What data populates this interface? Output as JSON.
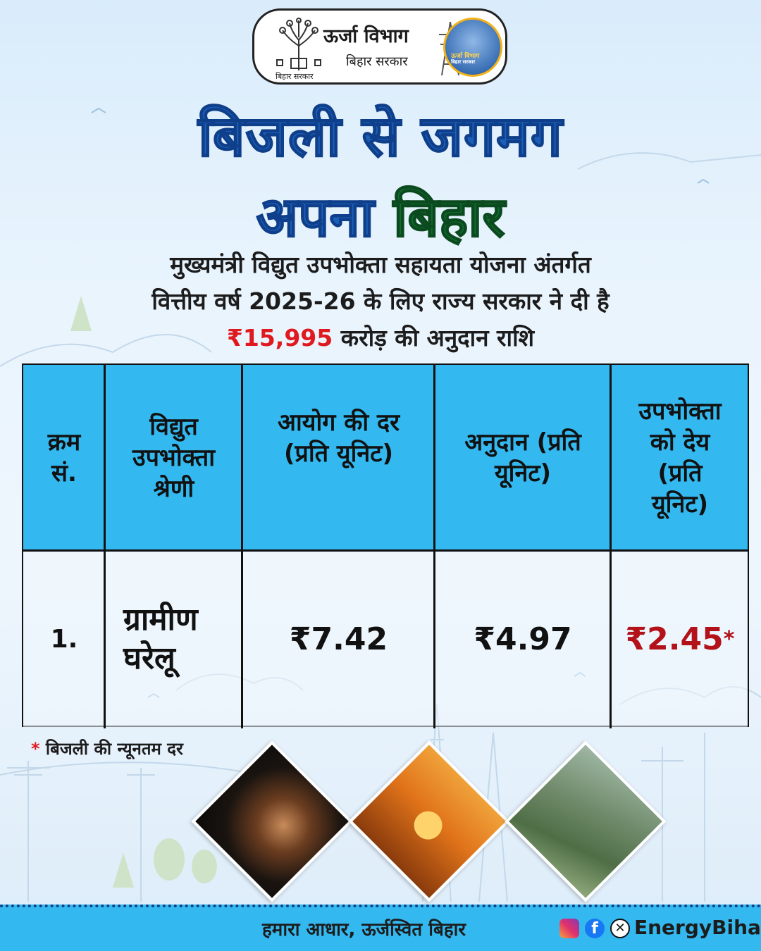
{
  "header": {
    "department": "ऊर्जा विभाग",
    "government": "बिहार सरकार",
    "emblem_caption": "बिहार सरकार",
    "logo_text": "ऊर्जा विभाग",
    "logo_subtext": "बिहार सरकार"
  },
  "headline": {
    "line1": "बिजली से जगमग",
    "line2_part1": "अपना",
    "line2_part2": "बिहार"
  },
  "subtext": {
    "line1": "मुख्यमंत्री विद्युत उपभोक्ता सहायता योजना अंतर्गत",
    "line2": "वित्तीय वर्ष 2025-26 के लिए राज्य सरकार ने दी है",
    "amount": "₹15,995",
    "line3_rest": " करोड़ की अनुदान राशि"
  },
  "table": {
    "headers": [
      "क्रम सं.",
      "विद्युत उपभोक्ता श्रेणी",
      "आयोग की दर (प्रति यूनिट)",
      "अनुदान (प्रति यूनिट)",
      "उपभोक्ता को देय (प्रति यूनिट)"
    ],
    "rows": [
      {
        "sno": "1.",
        "category": "ग्रामीण घरेलू",
        "commission_rate": "₹7.42",
        "subsidy": "₹4.97",
        "payable": "₹2.45",
        "payable_mark": "*"
      }
    ]
  },
  "footnote": {
    "star": "*",
    "text": " बिजली की  न्यूनतम दर"
  },
  "footer": {
    "tagline": "हमारा आधार, ऊर्जस्वित बिहार",
    "handle": "EnergyBihar",
    "fb_glyph": "f",
    "x_glyph": "✕"
  },
  "colors": {
    "title_blue": "#1b5fb8",
    "title_green": "#126b2e",
    "header_cyan": "#33b9f0",
    "amount_red": "#e0191f",
    "payable_red": "#b3121a"
  }
}
